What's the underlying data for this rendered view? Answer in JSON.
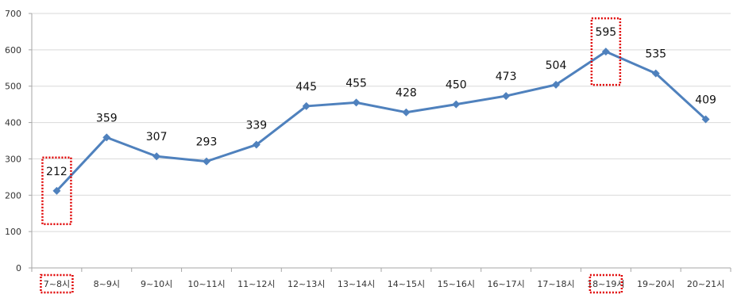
{
  "chart_data": {
    "type": "line",
    "categories": [
      "7~8시",
      "8~9시",
      "9~10시",
      "10~11시",
      "11~12시",
      "12~13시",
      "13~14시",
      "14~15시",
      "15~16시",
      "16~17시",
      "17~18시",
      "18~19시",
      "19~20시",
      "20~21시"
    ],
    "series": [
      {
        "values": [
          212,
          359,
          307,
          293,
          339,
          445,
          455,
          428,
          450,
          473,
          504,
          595,
          535,
          409
        ]
      }
    ],
    "ylim": [
      0,
      700
    ],
    "yticks": [
      0,
      100,
      200,
      300,
      400,
      500,
      600,
      700
    ],
    "grid": true,
    "highlighted_categories": [
      "7~8시",
      "18~19시"
    ],
    "colors": {
      "line": "#4f81bd",
      "grid": "#d9d9d9",
      "axis": "#a6a6a6",
      "highlight": "#e00000"
    }
  }
}
